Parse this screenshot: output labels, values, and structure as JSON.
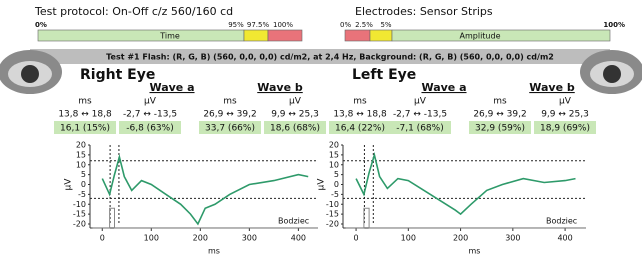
{
  "header": {
    "protocol": "Test protocol: On-Off c/z 560/160 cd",
    "electrodes": "Electrodes: Sensor Strips",
    "time_bar": {
      "label": "Time",
      "marks": [
        "0%",
        "95%",
        "97.5%",
        "100%"
      ]
    },
    "amplitude_bar": {
      "label": "Amplitude",
      "marks": [
        "0%",
        "2.5%",
        "5%",
        "100%"
      ]
    },
    "banner": "Test #1 Flash: (R, G, B) (560, 0,0, 0,0) cd/m2, at 2,4 Hz, Background: (R, G, B) (560, 0,0, 0,0) cd/m2"
  },
  "eyes": [
    {
      "title": "Right Eye",
      "wave_a": "Wave a",
      "wave_b": "Wave b",
      "units": [
        "ms",
        "µV",
        "ms",
        "µV"
      ],
      "ranges": [
        "13,8 ↔ 18,8",
        "-2,7 ↔ -13,5",
        "26,9 ↔ 39,2",
        "9,9 ↔ 25,3"
      ],
      "values": [
        "16,1 (15%)",
        "-6,8 (63%)",
        "33,7 (66%)",
        "18,6 (68%)"
      ]
    },
    {
      "title": "Left Eye",
      "wave_a": "Wave a",
      "wave_b": "Wave b",
      "units": [
        "ms",
        "µV",
        "ms",
        "µV"
      ],
      "ranges": [
        "13,8 ↔ 18,8",
        "-2,7 ↔ -13,5",
        "26,9 ↔ 39,2",
        "9,9 ↔ 25,3"
      ],
      "values": [
        "16,4 (22%)",
        "-7,1 (68%)",
        "32,9 (59%)",
        "18,9 (69%)"
      ]
    }
  ],
  "chart_data": [
    {
      "type": "line",
      "x_label": "ms",
      "y_label": "µV",
      "xlim": [
        -25,
        440
      ],
      "ylim": [
        -20,
        20
      ],
      "xticks": [
        0,
        100,
        200,
        300,
        400
      ],
      "yticks": [
        20,
        15,
        10,
        5,
        0,
        -5,
        -10,
        -15,
        -20
      ],
      "hlines": [
        12,
        -7
      ],
      "vlines": [
        16,
        34
      ],
      "series": [
        {
          "name": "",
          "color": "#2e9a6a",
          "x": [
            0,
            15,
            25,
            35,
            45,
            60,
            80,
            100,
            130,
            160,
            180,
            195,
            210,
            230,
            260,
            300,
            350,
            400,
            420
          ],
          "values": [
            3,
            -5,
            5,
            14,
            4,
            -3,
            2,
            0,
            -5,
            -10,
            -15,
            -20,
            -12,
            -10,
            -5,
            0,
            2,
            5,
            4
          ]
        },
        {
          "name": "Bodziec",
          "color": "#888888",
          "x": [
            -20,
            15,
            15,
            25,
            25,
            440
          ],
          "values": [
            -22,
            -22,
            -12,
            -12,
            -22,
            -22
          ]
        }
      ]
    },
    {
      "type": "line",
      "x_label": "ms",
      "y_label": "µV",
      "xlim": [
        -25,
        440
      ],
      "ylim": [
        -20,
        20
      ],
      "xticks": [
        0,
        100,
        200,
        300,
        400
      ],
      "yticks": [
        20,
        15,
        10,
        5,
        0,
        -5,
        -10,
        -15,
        -20
      ],
      "hlines": [
        12,
        -7
      ],
      "vlines": [
        16,
        33
      ],
      "series": [
        {
          "name": "",
          "color": "#2e9a6a",
          "x": [
            0,
            15,
            25,
            35,
            45,
            60,
            80,
            100,
            130,
            160,
            190,
            200,
            220,
            250,
            280,
            320,
            360,
            400,
            420
          ],
          "values": [
            3,
            -5,
            6,
            15,
            4,
            -2,
            3,
            2,
            -3,
            -8,
            -13,
            -15,
            -10,
            -3,
            0,
            3,
            1,
            2,
            3
          ]
        },
        {
          "name": "Bodziec",
          "color": "#888888",
          "x": [
            -20,
            15,
            15,
            25,
            25,
            440
          ],
          "values": [
            -22,
            -22,
            -12,
            -12,
            -22,
            -22
          ]
        }
      ]
    }
  ]
}
